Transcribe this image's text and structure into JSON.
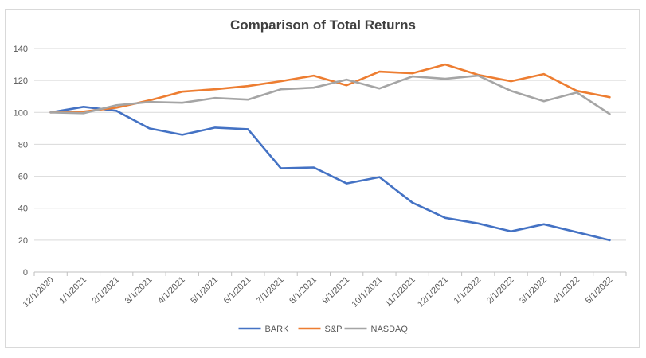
{
  "chart_data": {
    "type": "line",
    "title": "Comparison of Total Returns",
    "xlabel": "",
    "ylabel": "",
    "ylim": [
      0,
      140
    ],
    "yticks": [
      0,
      20,
      40,
      60,
      80,
      100,
      120,
      140
    ],
    "grid": "horizontal",
    "legend_position": "bottom",
    "categories": [
      "12/1/2020",
      "1/1/2021",
      "2/1/2021",
      "3/1/2021",
      "4/1/2021",
      "5/1/2021",
      "6/1/2021",
      "7/1/2021",
      "8/1/2021",
      "9/1/2021",
      "10/1/2021",
      "11/1/2021",
      "12/1/2021",
      "1/1/2022",
      "2/1/2022",
      "3/1/2022",
      "4/1/2022",
      "5/1/2022"
    ],
    "series": [
      {
        "name": "BARK",
        "color": "#4472C4",
        "values": [
          100,
          103.5,
          101,
          90,
          86,
          90.5,
          89.5,
          65,
          65.5,
          55.5,
          59.5,
          43.5,
          34,
          30.5,
          25.5,
          30,
          25,
          20
        ]
      },
      {
        "name": "S&P",
        "color": "#ED7D31",
        "values": [
          100,
          100.5,
          103,
          107.5,
          113,
          114.5,
          116.5,
          119.5,
          123,
          117,
          125.5,
          124.5,
          130,
          123.5,
          119.5,
          124,
          113.5,
          109.5
        ]
      },
      {
        "name": "NASDAQ",
        "color": "#A5A5A5",
        "values": [
          100,
          99.5,
          104.5,
          106.5,
          106,
          109,
          108,
          114.5,
          115.5,
          120.5,
          115,
          122.5,
          121,
          123,
          113.5,
          107,
          112.5,
          99
        ]
      }
    ]
  }
}
